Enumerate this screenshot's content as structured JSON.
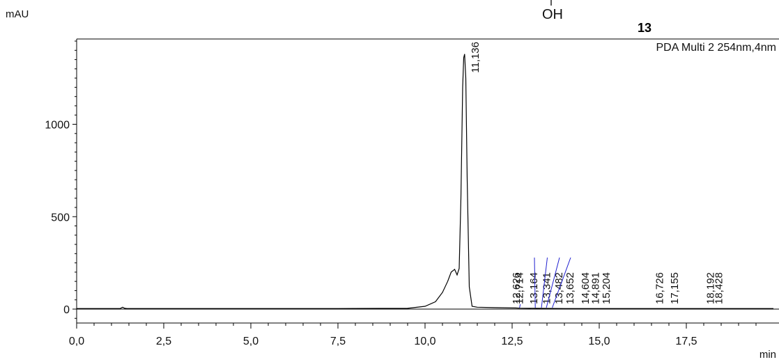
{
  "chart_data": {
    "type": "line",
    "title": "",
    "compound_label": "13",
    "structure_fragment": "OH",
    "series_label": "PDA Multi 2 254nm,4nm",
    "ylabel": "mAU",
    "xlabel": "min",
    "xlim": [
      0,
      20
    ],
    "ylim": [
      -50,
      1480
    ],
    "x_ticks": [
      0,
      2.5,
      5,
      7.5,
      10,
      12.5,
      15,
      17.5
    ],
    "x_tick_labels": [
      "0,0",
      "2,5",
      "5,0",
      "7,5",
      "10,0",
      "12,5",
      "15,0",
      "17,5"
    ],
    "y_ticks": [
      0,
      500,
      1000
    ],
    "y_tick_labels": [
      "0",
      "500",
      "1000"
    ],
    "trace": {
      "x": [
        0,
        1.25,
        1.32,
        1.38,
        1.45,
        2.5,
        5,
        7.5,
        9.5,
        10.0,
        10.3,
        10.5,
        10.65,
        10.75,
        10.85,
        10.92,
        10.98,
        11.03,
        11.08,
        11.11,
        11.136,
        11.17,
        11.21,
        11.27,
        11.35,
        11.5,
        12.0,
        12.6,
        12.72,
        13.2,
        14.0,
        16.0,
        20.0
      ],
      "y": [
        3,
        3,
        10,
        4,
        3,
        3,
        3,
        3,
        4,
        15,
        40,
        90,
        150,
        200,
        215,
        185,
        220,
        600,
        1200,
        1360,
        1380,
        1250,
        700,
        120,
        15,
        10,
        8,
        6,
        5,
        4,
        3,
        3,
        3
      ]
    },
    "peaks": [
      {
        "label": "11,136",
        "rt": 11.136,
        "height": 1380
      },
      {
        "label": "12,626",
        "rt": 12.626,
        "height": 6
      },
      {
        "label": "12,714",
        "rt": 12.714,
        "height": 5
      },
      {
        "label": "13,164",
        "rt": 13.164,
        "height": 4
      },
      {
        "label": "13,341",
        "rt": 13.341,
        "height": 4
      },
      {
        "label": "13,482",
        "rt": 13.482,
        "height": 4
      },
      {
        "label": "13,652",
        "rt": 13.652,
        "height": 4
      },
      {
        "label": "14,604",
        "rt": 14.604,
        "height": 3
      },
      {
        "label": "14,891",
        "rt": 14.891,
        "height": 3
      },
      {
        "label": "15,204",
        "rt": 15.204,
        "height": 3
      },
      {
        "label": "16,726",
        "rt": 16.726,
        "height": 3
      },
      {
        "label": "17,155",
        "rt": 17.155,
        "height": 3
      },
      {
        "label": "18,192",
        "rt": 18.192,
        "height": 3
      },
      {
        "label": "18,428",
        "rt": 18.428,
        "height": 3
      }
    ],
    "colors": {
      "trace": "#000000",
      "baseline": "#000000",
      "peak_marker": "#1f1fd0",
      "text": "#111111"
    }
  }
}
